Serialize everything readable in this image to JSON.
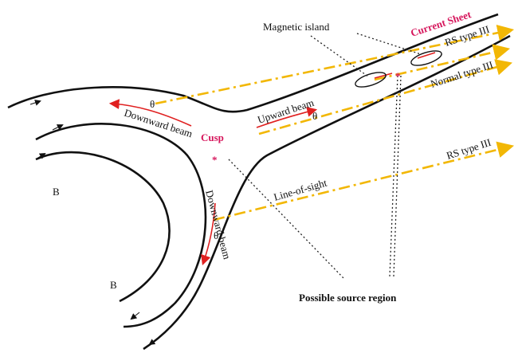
{
  "labels": {
    "magnetic_island": "Magnetic island",
    "current_sheet": "Current Sheet",
    "rs_type_iii_top": "RS type III",
    "normal_type_iii": "Normal type III",
    "rs_type_iii_bottom": "RS type III",
    "upward_beam": "Upward beam",
    "downward_beam_top": "Downward beam",
    "downward_beam_side": "Downward beam",
    "theta_top": "θ",
    "theta_upward": "θ",
    "theta_side": "θ",
    "cusp": "Cusp",
    "cusp_star": "*",
    "island_star": "*",
    "b_top": "B",
    "b_bottom": "B",
    "line_of_sight": "Line-of-sight",
    "possible_source_region": "Possible source region"
  }
}
